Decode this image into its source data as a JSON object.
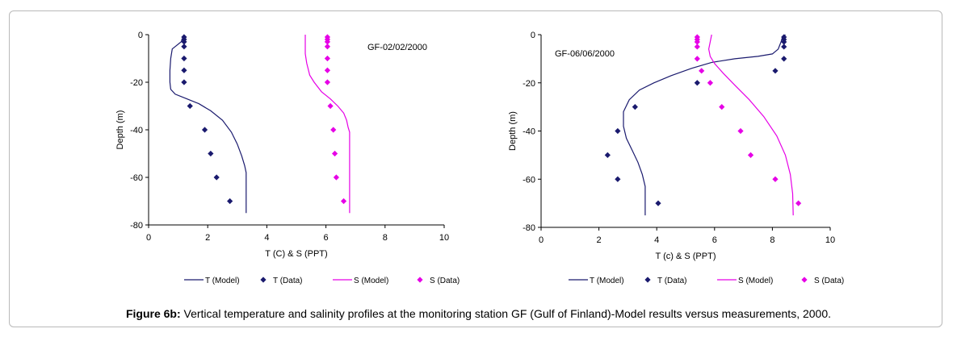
{
  "caption": {
    "label": "Figure 6b:",
    "text": " Vertical temperature and salinity profiles at the monitoring station GF (Gulf of Finland)-Model results versus measurements, 2000."
  },
  "colors": {
    "temperature": "#1a1a6e",
    "salinity": "#e600e6"
  },
  "chart_data": [
    {
      "type": "line",
      "title": "GF-02/02/2000",
      "xlabel": "T (C) & S (PPT)",
      "ylabel": "Depth (m)",
      "xlim": [
        0,
        10
      ],
      "ylim": [
        -80,
        0
      ],
      "xticks": [
        0,
        2,
        4,
        6,
        8,
        10
      ],
      "yticks": [
        0,
        -20,
        -40,
        -60,
        -80
      ],
      "legend_position": "bottom",
      "series": [
        {
          "name": "T (Model)",
          "kind": "line",
          "color": "#1a1a6e",
          "points": [
            [
              1.2,
              0
            ],
            [
              1.1,
              -3
            ],
            [
              0.9,
              -5
            ],
            [
              0.8,
              -6
            ],
            [
              0.75,
              -10
            ],
            [
              0.72,
              -15
            ],
            [
              0.72,
              -20
            ],
            [
              0.75,
              -23
            ],
            [
              0.9,
              -25
            ],
            [
              1.3,
              -27
            ],
            [
              1.7,
              -29
            ],
            [
              2.1,
              -32
            ],
            [
              2.5,
              -36
            ],
            [
              2.8,
              -41
            ],
            [
              3.0,
              -46
            ],
            [
              3.15,
              -51
            ],
            [
              3.25,
              -55
            ],
            [
              3.3,
              -58
            ],
            [
              3.3,
              -62
            ],
            [
              3.3,
              -75
            ]
          ]
        },
        {
          "name": "T (Data)",
          "kind": "scatter",
          "color": "#1a1a6e",
          "points": [
            [
              1.2,
              -1
            ],
            [
              1.2,
              -2
            ],
            [
              1.2,
              -3
            ],
            [
              1.2,
              -5
            ],
            [
              1.2,
              -10
            ],
            [
              1.2,
              -15
            ],
            [
              1.2,
              -20
            ],
            [
              1.4,
              -30
            ],
            [
              1.9,
              -40
            ],
            [
              2.1,
              -50
            ],
            [
              2.3,
              -60
            ],
            [
              2.75,
              -70
            ]
          ]
        },
        {
          "name": "S (Model)",
          "kind": "line",
          "color": "#e600e6",
          "points": [
            [
              5.3,
              0
            ],
            [
              5.3,
              -5
            ],
            [
              5.3,
              -8
            ],
            [
              5.35,
              -12
            ],
            [
              5.45,
              -17
            ],
            [
              5.6,
              -20
            ],
            [
              5.85,
              -24
            ],
            [
              6.15,
              -27
            ],
            [
              6.4,
              -30
            ],
            [
              6.6,
              -33
            ],
            [
              6.7,
              -36
            ],
            [
              6.75,
              -39
            ],
            [
              6.8,
              -41
            ],
            [
              6.8,
              -50
            ],
            [
              6.8,
              -60
            ],
            [
              6.8,
              -75
            ]
          ]
        },
        {
          "name": "S (Data)",
          "kind": "scatter",
          "color": "#e600e6",
          "points": [
            [
              6.05,
              -1
            ],
            [
              6.05,
              -2
            ],
            [
              6.05,
              -3
            ],
            [
              6.05,
              -5
            ],
            [
              6.05,
              -10
            ],
            [
              6.05,
              -15
            ],
            [
              6.05,
              -20
            ],
            [
              6.15,
              -30
            ],
            [
              6.25,
              -40
            ],
            [
              6.3,
              -50
            ],
            [
              6.35,
              -60
            ],
            [
              6.6,
              -70
            ]
          ]
        }
      ]
    },
    {
      "type": "line",
      "title": "GF-06/06/2000",
      "xlabel": "T (c) & S (PPT)",
      "ylabel": "Depth (m)",
      "xlim": [
        0,
        10
      ],
      "ylim": [
        -80,
        0
      ],
      "xticks": [
        0,
        2,
        4,
        6,
        8,
        10
      ],
      "yticks": [
        0,
        -20,
        -40,
        -60,
        -80
      ],
      "legend_position": "bottom",
      "series": [
        {
          "name": "T (Model)",
          "kind": "line",
          "color": "#1a1a6e",
          "points": [
            [
              8.45,
              0
            ],
            [
              8.35,
              -1
            ],
            [
              8.3,
              -3
            ],
            [
              8.2,
              -6
            ],
            [
              8.0,
              -8
            ],
            [
              7.5,
              -9
            ],
            [
              6.7,
              -10
            ],
            [
              5.9,
              -11.5
            ],
            [
              5.2,
              -14
            ],
            [
              4.5,
              -17
            ],
            [
              3.9,
              -20
            ],
            [
              3.4,
              -23
            ],
            [
              3.05,
              -27
            ],
            [
              2.85,
              -32
            ],
            [
              2.85,
              -38
            ],
            [
              2.95,
              -43
            ],
            [
              3.15,
              -48
            ],
            [
              3.35,
              -53
            ],
            [
              3.5,
              -58
            ],
            [
              3.6,
              -63
            ],
            [
              3.6,
              -75
            ]
          ]
        },
        {
          "name": "T (Data)",
          "kind": "scatter",
          "color": "#1a1a6e",
          "points": [
            [
              8.4,
              -1
            ],
            [
              8.4,
              -2
            ],
            [
              8.4,
              -3
            ],
            [
              8.4,
              -5
            ],
            [
              8.4,
              -10
            ],
            [
              8.1,
              -15
            ],
            [
              5.4,
              -20
            ],
            [
              3.25,
              -30
            ],
            [
              2.65,
              -40
            ],
            [
              2.3,
              -50
            ],
            [
              2.65,
              -60
            ],
            [
              4.05,
              -70
            ]
          ]
        },
        {
          "name": "S (Model)",
          "kind": "line",
          "color": "#e600e6",
          "points": [
            [
              5.9,
              0
            ],
            [
              5.85,
              -3
            ],
            [
              5.8,
              -6
            ],
            [
              5.85,
              -9
            ],
            [
              6.0,
              -12
            ],
            [
              6.3,
              -16
            ],
            [
              6.7,
              -21
            ],
            [
              7.2,
              -27
            ],
            [
              7.7,
              -34
            ],
            [
              8.15,
              -42
            ],
            [
              8.45,
              -50
            ],
            [
              8.62,
              -58
            ],
            [
              8.7,
              -66
            ],
            [
              8.72,
              -75
            ]
          ]
        },
        {
          "name": "S (Data)",
          "kind": "scatter",
          "color": "#e600e6",
          "points": [
            [
              5.4,
              -1
            ],
            [
              5.4,
              -2
            ],
            [
              5.4,
              -3
            ],
            [
              5.4,
              -5
            ],
            [
              5.4,
              -10
            ],
            [
              5.55,
              -15
            ],
            [
              5.85,
              -20
            ],
            [
              6.25,
              -30
            ],
            [
              6.9,
              -40
            ],
            [
              7.25,
              -50
            ],
            [
              8.1,
              -60
            ],
            [
              8.9,
              -70
            ]
          ]
        }
      ]
    }
  ]
}
